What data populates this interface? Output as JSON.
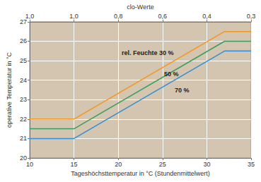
{
  "chart_data": {
    "type": "line",
    "x_label": "Tageshöchsttemperatur in °C (Stundenmittelwert)",
    "y_label": "operative Temperatur in °C",
    "xlim": [
      10,
      35
    ],
    "xticks": [
      10,
      15,
      20,
      25,
      30,
      35
    ],
    "ylim": [
      20,
      27
    ],
    "yticks": [
      20,
      21,
      22,
      23,
      24,
      25,
      26,
      27
    ],
    "x2_label": "clo-Werte",
    "x2lim": [
      10,
      35
    ],
    "x2ticks": [
      {
        "value": 10,
        "label": "1,0"
      },
      {
        "value": 15,
        "label": "1,0"
      },
      {
        "value": 20,
        "label": "0,8"
      },
      {
        "value": 25,
        "label": "0,6"
      },
      {
        "value": 30,
        "label": "0,4"
      },
      {
        "value": 35,
        "label": "0,3"
      }
    ],
    "grid": true,
    "series": [
      {
        "name": "rel. Feuchte 30 %",
        "color": "#f7941d",
        "x": [
          10,
          15,
          32,
          35
        ],
        "values": [
          22,
          22,
          26.5,
          26.5
        ]
      },
      {
        "name": "50 %",
        "color": "#3a9e5c",
        "x": [
          10,
          15,
          32,
          35
        ],
        "values": [
          21.5,
          21.5,
          26,
          26
        ]
      },
      {
        "name": "70 %",
        "color": "#2f8fd8",
        "x": [
          10,
          15,
          32,
          35
        ],
        "values": [
          21,
          21,
          25.5,
          25.5
        ]
      }
    ]
  }
}
